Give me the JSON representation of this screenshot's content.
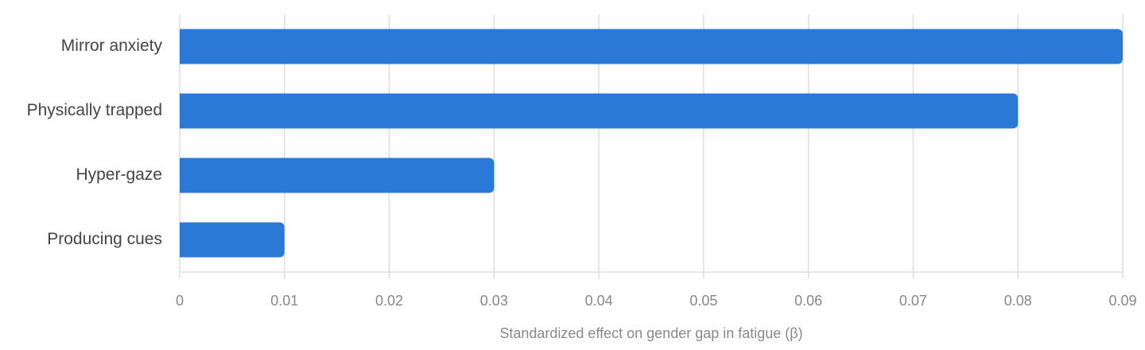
{
  "chart_data": {
    "type": "barh",
    "categories": [
      "Mirror anxiety",
      "Physically trapped",
      "Hyper-gaze",
      "Producing cues"
    ],
    "values": [
      0.09,
      0.08,
      0.03,
      0.01
    ],
    "color": "#2b79d6",
    "xlabel": "Standardized effect on gender gap in fatigue (β)",
    "xlim": [
      0,
      0.09
    ],
    "xticks": [
      0,
      0.01,
      0.02,
      0.03,
      0.04,
      0.05,
      0.06,
      0.07,
      0.08,
      0.09
    ],
    "grid": true
  }
}
